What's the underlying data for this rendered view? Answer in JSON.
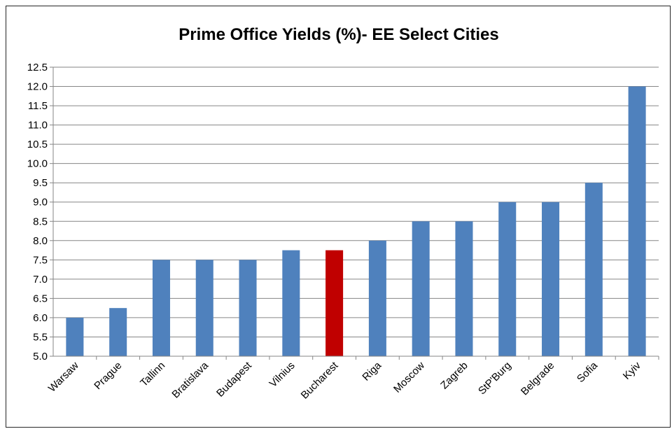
{
  "chart_data": {
    "type": "bar",
    "title": "Prime Office Yields (%)- EE Select Cities",
    "xlabel": "",
    "ylabel": "",
    "ylim": [
      5.0,
      12.5
    ],
    "ytick_step": 0.5,
    "grid": true,
    "legend": "none",
    "categories": [
      "Warsaw",
      "Prague",
      "Tallinn",
      "Bratislava",
      "Budapest",
      "Vilnius",
      "Bucharest",
      "Riga",
      "Moscow",
      "Zagreb",
      "StP'Burg",
      "Belgrade",
      "Sofia",
      "Kyiv"
    ],
    "values": [
      6.0,
      6.25,
      7.5,
      7.5,
      7.5,
      7.75,
      7.75,
      8.0,
      8.5,
      8.5,
      9.0,
      9.0,
      9.5,
      12.0
    ],
    "highlight_category": "Bucharest",
    "bar_color": "#4f81bd",
    "highlight_color": "#c00000",
    "grid_color": "#868686"
  }
}
